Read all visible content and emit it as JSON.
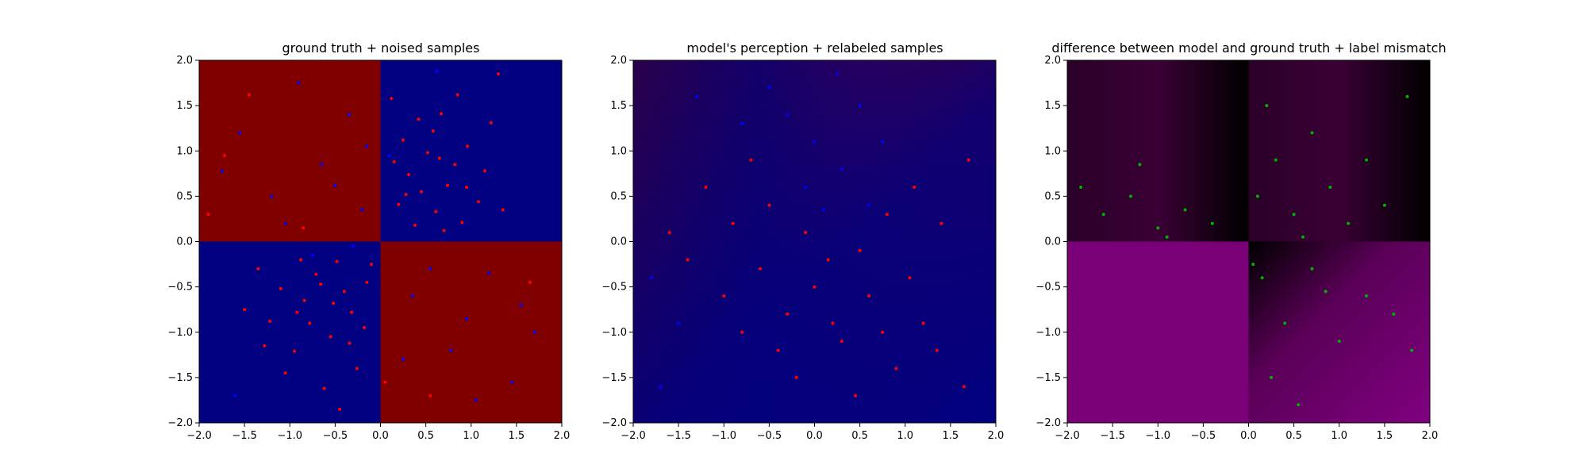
{
  "chart_data": [
    {
      "type": "scatter",
      "title": "ground truth + noised samples",
      "xlim": [
        -2.0,
        2.0
      ],
      "ylim": [
        -2.0,
        2.0
      ],
      "xticks": [
        "-2.0",
        "-1.5",
        "-1.0",
        "-0.5",
        "0.0",
        "0.5",
        "1.0",
        "1.5",
        "2.0"
      ],
      "yticks": [
        "-2.0",
        "-1.5",
        "-1.0",
        "-0.5",
        "0.0",
        "0.5",
        "1.0",
        "1.5",
        "2.0"
      ],
      "background": "xor quadrants: red where x*y<0, blue where x*y>0",
      "background_colors": {
        "red": "#800000",
        "blue": "#000080"
      },
      "point_colors": {
        "red": "#ff0000",
        "blue": "#0000ff"
      },
      "series": [
        {
          "color": "#ff0000",
          "points": [
            [
              0.12,
              1.58
            ],
            [
              0.25,
              1.12
            ],
            [
              0.31,
              0.74
            ],
            [
              0.45,
              0.55
            ],
            [
              0.52,
              0.98
            ],
            [
              0.61,
              0.33
            ],
            [
              0.67,
              1.41
            ],
            [
              0.74,
              0.62
            ],
            [
              0.82,
              0.85
            ],
            [
              0.9,
              0.21
            ],
            [
              0.96,
              1.05
            ],
            [
              1.08,
              0.44
            ],
            [
              1.15,
              0.78
            ],
            [
              1.22,
              1.31
            ],
            [
              0.38,
              0.18
            ],
            [
              0.2,
              0.41
            ],
            [
              0.58,
              1.22
            ],
            [
              0.7,
              0.12
            ],
            [
              0.95,
              0.6
            ],
            [
              0.15,
              0.88
            ],
            [
              0.42,
              1.35
            ],
            [
              0.85,
              1.62
            ],
            [
              1.35,
              0.35
            ],
            [
              0.28,
              0.52
            ],
            [
              0.65,
              0.92
            ],
            [
              -0.15,
              -0.45
            ],
            [
              -0.32,
              -0.78
            ],
            [
              -0.48,
              -0.22
            ],
            [
              -0.55,
              -1.05
            ],
            [
              -0.71,
              -0.36
            ],
            [
              -0.84,
              -0.65
            ],
            [
              -0.95,
              -1.21
            ],
            [
              -1.1,
              -0.52
            ],
            [
              -1.22,
              -0.88
            ],
            [
              -0.26,
              -1.4
            ],
            [
              -0.62,
              -1.62
            ],
            [
              -0.4,
              -0.55
            ],
            [
              -0.78,
              -0.9
            ],
            [
              -1.35,
              -0.3
            ],
            [
              -0.18,
              -0.95
            ],
            [
              -0.52,
              -0.68
            ],
            [
              -0.88,
              -0.2
            ],
            [
              -1.05,
              -1.45
            ],
            [
              -0.34,
              -1.12
            ],
            [
              -0.66,
              -0.47
            ],
            [
              -1.5,
              -0.75
            ],
            [
              -0.1,
              -0.25
            ],
            [
              -0.45,
              -1.85
            ],
            [
              -0.92,
              -0.78
            ],
            [
              -1.28,
              -1.15
            ],
            [
              -1.72,
              0.95
            ],
            [
              -1.45,
              1.62
            ],
            [
              -0.85,
              0.15
            ],
            [
              0.55,
              -1.7
            ],
            [
              1.65,
              -0.45
            ],
            [
              0.05,
              -1.55
            ],
            [
              -1.9,
              0.3
            ],
            [
              1.3,
              1.85
            ]
          ]
        },
        {
          "color": "#0000ff",
          "points": [
            [
              -0.35,
              1.4
            ],
            [
              -0.65,
              0.85
            ],
            [
              -1.2,
              0.5
            ],
            [
              -0.9,
              1.75
            ],
            [
              -1.55,
              1.2
            ],
            [
              -0.2,
              0.35
            ],
            [
              -1.05,
              0.2
            ],
            [
              -0.5,
              0.62
            ],
            [
              -1.75,
              0.78
            ],
            [
              -0.15,
              1.05
            ],
            [
              0.35,
              -0.6
            ],
            [
              0.78,
              -1.2
            ],
            [
              1.2,
              -0.35
            ],
            [
              1.45,
              -1.55
            ],
            [
              0.95,
              -0.85
            ],
            [
              0.55,
              -0.3
            ],
            [
              1.7,
              -1.0
            ],
            [
              0.25,
              -1.3
            ],
            [
              1.05,
              -1.75
            ],
            [
              1.55,
              -0.7
            ],
            [
              0.62,
              1.88
            ],
            [
              0.1,
              0.95
            ],
            [
              -0.75,
              -0.15
            ],
            [
              -1.6,
              -1.7
            ],
            [
              -0.3,
              -0.05
            ]
          ]
        }
      ]
    },
    {
      "type": "scatter",
      "title": "model's perception + relabeled samples",
      "xlim": [
        -2.0,
        2.0
      ],
      "ylim": [
        -2.0,
        2.0
      ],
      "xticks": [
        "-2.0",
        "-1.5",
        "-1.0",
        "-0.5",
        "0.0",
        "0.5",
        "1.0",
        "1.5",
        "2.0"
      ],
      "yticks": [
        "-2.0",
        "-1.5",
        "-1.0",
        "-0.5",
        "0.0",
        "0.5",
        "1.0",
        "1.5",
        "2.0"
      ],
      "background": "smooth probability map: blue on left/bottom, red on right",
      "series": [
        {
          "color": "#ff0000",
          "points": [
            [
              -1.2,
              0.6
            ],
            [
              -0.9,
              0.2
            ],
            [
              -0.6,
              -0.3
            ],
            [
              -0.3,
              -0.8
            ],
            [
              0.0,
              -0.5
            ],
            [
              0.3,
              -1.1
            ],
            [
              0.6,
              -0.6
            ],
            [
              0.9,
              -1.4
            ],
            [
              1.2,
              -0.9
            ],
            [
              -1.4,
              -0.2
            ],
            [
              -0.8,
              -1.0
            ],
            [
              -0.5,
              0.4
            ],
            [
              -0.2,
              -1.5
            ],
            [
              0.15,
              -0.2
            ],
            [
              0.45,
              -1.7
            ],
            [
              0.75,
              -1.0
            ],
            [
              1.05,
              -0.4
            ],
            [
              1.35,
              -1.2
            ],
            [
              1.65,
              -1.6
            ],
            [
              -1.0,
              -0.6
            ],
            [
              -0.7,
              0.9
            ],
            [
              -0.4,
              -1.2
            ],
            [
              -0.1,
              0.1
            ],
            [
              0.2,
              -0.9
            ],
            [
              0.5,
              -0.1
            ],
            [
              0.8,
              0.3
            ],
            [
              1.1,
              0.6
            ],
            [
              1.4,
              0.2
            ],
            [
              1.7,
              0.9
            ],
            [
              -1.6,
              0.1
            ]
          ]
        },
        {
          "color": "#0000ff",
          "points": [
            [
              -0.3,
              1.4
            ],
            [
              0.0,
              1.1
            ],
            [
              0.3,
              0.8
            ],
            [
              0.5,
              1.5
            ],
            [
              -0.5,
              1.7
            ],
            [
              -0.1,
              0.6
            ],
            [
              0.25,
              1.85
            ],
            [
              0.6,
              0.4
            ],
            [
              -0.8,
              1.3
            ],
            [
              0.1,
              0.35
            ],
            [
              0.75,
              1.1
            ],
            [
              -1.3,
              1.6
            ],
            [
              -1.7,
              -1.6
            ],
            [
              -1.5,
              -0.9
            ],
            [
              -1.8,
              -0.4
            ]
          ]
        }
      ]
    },
    {
      "type": "scatter",
      "title": "difference between model and ground truth + label mismatch",
      "xlim": [
        -2.0,
        2.0
      ],
      "ylim": [
        -2.0,
        2.0
      ],
      "xticks": [
        "-2.0",
        "-1.5",
        "-1.0",
        "-0.5",
        "0.0",
        "0.5",
        "1.0",
        "1.5",
        "2.0"
      ],
      "yticks": [
        "-2.0",
        "-1.5",
        "-1.0",
        "-0.5",
        "0.0",
        "0.5",
        "1.0",
        "1.5",
        "2.0"
      ],
      "background": "magenta intensity of |model - truth|; bright in bottom-left quadrant",
      "series": [
        {
          "color": "#00b000",
          "points": [
            [
              0.1,
              0.5
            ],
            [
              0.3,
              0.9
            ],
            [
              0.5,
              0.3
            ],
            [
              0.7,
              1.2
            ],
            [
              0.9,
              0.6
            ],
            [
              1.1,
              0.2
            ],
            [
              1.3,
              0.9
            ],
            [
              0.2,
              1.5
            ],
            [
              0.6,
              0.05
            ],
            [
              1.5,
              0.4
            ],
            [
              -0.4,
              0.2
            ],
            [
              -0.7,
              0.35
            ],
            [
              -1.0,
              0.15
            ],
            [
              -1.3,
              0.5
            ],
            [
              -1.6,
              0.3
            ],
            [
              -1.85,
              0.6
            ],
            [
              -1.2,
              0.85
            ],
            [
              -0.9,
              0.05
            ],
            [
              0.15,
              -0.4
            ],
            [
              0.4,
              -0.9
            ],
            [
              0.7,
              -0.3
            ],
            [
              1.0,
              -1.1
            ],
            [
              1.3,
              -0.6
            ],
            [
              0.25,
              -1.5
            ],
            [
              0.55,
              -1.8
            ],
            [
              1.6,
              -0.8
            ],
            [
              0.85,
              -0.55
            ],
            [
              1.8,
              -1.2
            ],
            [
              0.05,
              -0.25
            ],
            [
              1.75,
              1.6
            ]
          ]
        }
      ]
    }
  ]
}
